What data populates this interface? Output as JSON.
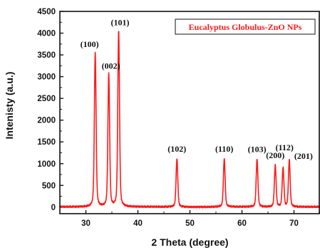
{
  "chart_data": {
    "type": "line",
    "title": "",
    "xlabel": "2 Theta (degree)",
    "ylabel": "Intenisty (a.u.)",
    "xlim": [
      25,
      75
    ],
    "ylim": [
      -150,
      4500
    ],
    "xticks": [
      30,
      40,
      50,
      60,
      70
    ],
    "yticks": [
      0,
      500,
      1000,
      1500,
      2000,
      2500,
      3000,
      3500,
      4000,
      4500
    ],
    "grid": false,
    "legend_position": "top-right",
    "line_color": "#ff1a1a",
    "baseline": 5,
    "series": [
      {
        "name": "Eucalyptus Globulus-ZnO NPs",
        "peaks": [
          {
            "x": 31.8,
            "y": 3550,
            "label": "(100)"
          },
          {
            "x": 34.4,
            "y": 3050,
            "label": "(002)"
          },
          {
            "x": 36.3,
            "y": 4050,
            "label": "(101)"
          },
          {
            "x": 47.5,
            "y": 1110,
            "label": "(102)"
          },
          {
            "x": 56.6,
            "y": 1110,
            "label": "(110)"
          },
          {
            "x": 62.9,
            "y": 1100,
            "label": "(103)"
          },
          {
            "x": 66.4,
            "y": 960,
            "label": "(200)"
          },
          {
            "x": 67.9,
            "y": 900,
            "label": "(112)"
          },
          {
            "x": 69.1,
            "y": 1080,
            "label": "(201)"
          }
        ]
      }
    ]
  }
}
